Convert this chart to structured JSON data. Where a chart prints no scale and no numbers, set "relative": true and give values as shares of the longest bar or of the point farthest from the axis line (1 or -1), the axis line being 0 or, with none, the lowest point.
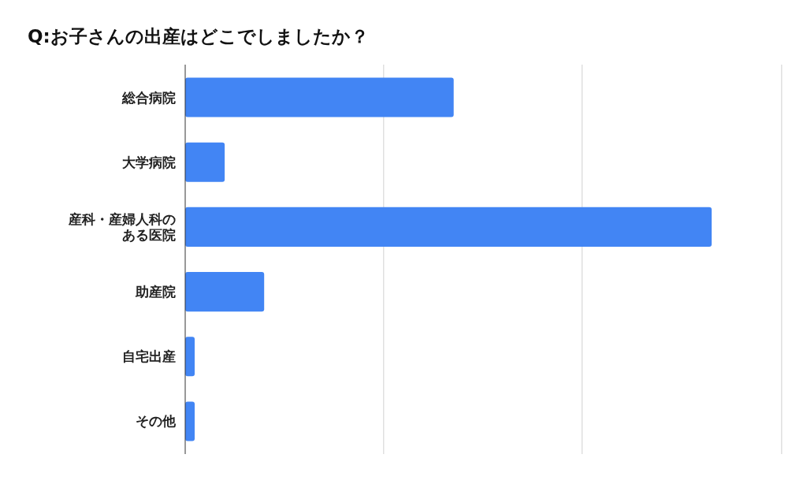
{
  "chart_data": {
    "type": "bar",
    "orientation": "horizontal",
    "relative": true,
    "title": "Q:お子さんの出産はどこでしましたか？",
    "categories": [
      "総合病院",
      "大学病院",
      "産科・産婦人科のある医院",
      "助産院",
      "自宅出産",
      "その他"
    ],
    "values": [
      0.51,
      0.075,
      1,
      0.15,
      0.018,
      0.018
    ],
    "color": "#4285f4",
    "ref_lines": [
      {
        "axis": "x",
        "value": 0.377,
        "color": "#d0d0d0"
      },
      {
        "axis": "x",
        "value": 0.754,
        "color": "#d0d0d0"
      },
      {
        "axis": "x",
        "value": 1.133,
        "color": "#d0d0d0"
      }
    ]
  }
}
